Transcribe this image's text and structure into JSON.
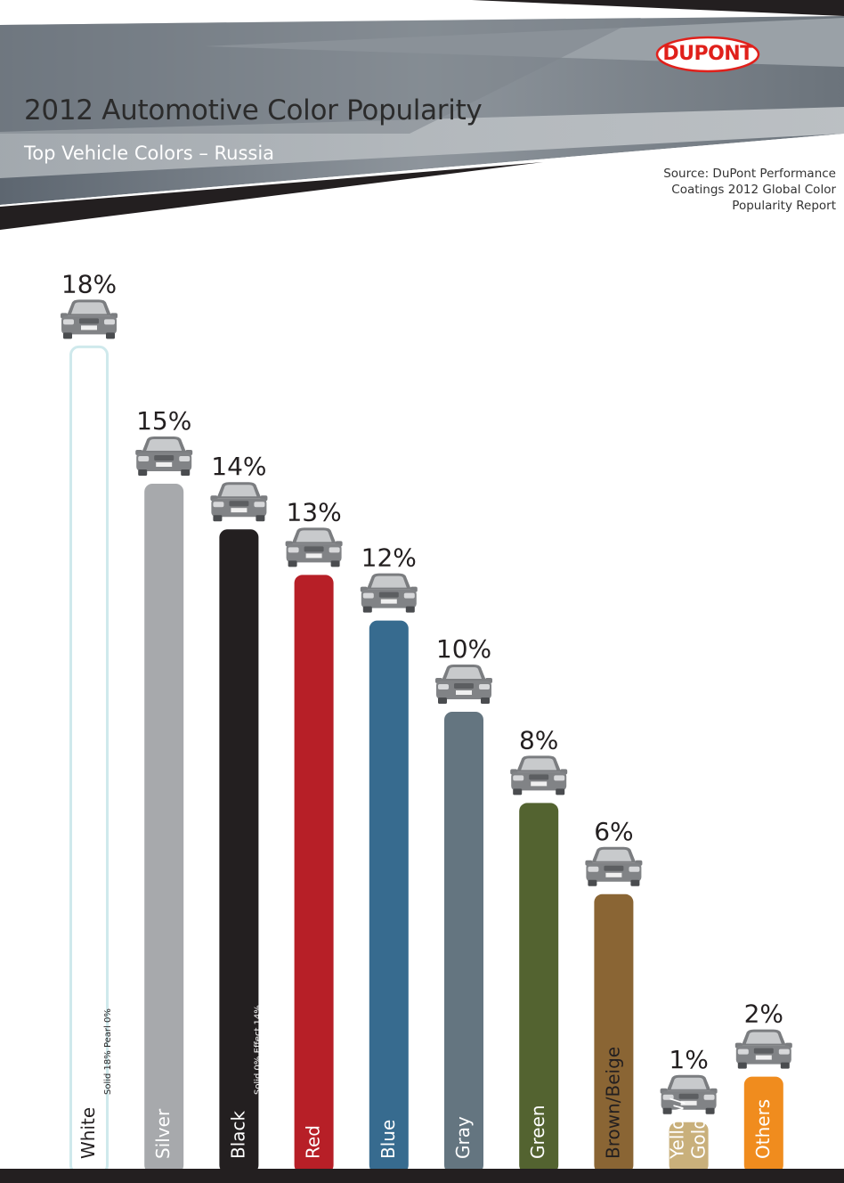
{
  "header": {
    "title": "2012 Automotive Color Popularity",
    "subtitle": "Top Vehicle Colors – Russia",
    "source": "Source: DuPont Performance Coatings 2012 Global Color Popularity Report",
    "logo_text": "DUPONT"
  },
  "chart_data": {
    "type": "bar",
    "title": "2012 Automotive Color Popularity",
    "subtitle": "Top Vehicle Colors – Russia",
    "ylim": [
      0,
      18
    ],
    "grid": false,
    "categories": [
      "White",
      "Silver",
      "Black",
      "Red",
      "Blue",
      "Gray",
      "Green",
      "Brown/Beige",
      "Yellow/ Gold",
      "Others"
    ],
    "values": [
      18,
      15,
      14,
      13,
      12,
      10,
      8,
      6,
      1,
      2
    ],
    "value_labels": [
      "18%",
      "15%",
      "14%",
      "13%",
      "12%",
      "10%",
      "8%",
      "6%",
      "1%",
      "2%"
    ],
    "colors": [
      "#ffffff",
      "#a7a9ac",
      "#231f20",
      "#b71f27",
      "#376b8f",
      "#647580",
      "#536330",
      "#8a6534",
      "#c9b07b",
      "#f08c1e"
    ],
    "white_outline_color": "#cfe9ec",
    "label_colors": [
      "#231f20",
      "#ffffff",
      "#ffffff",
      "#ffffff",
      "#ffffff",
      "#ffffff",
      "#ffffff",
      "#231f20",
      "#ffffff",
      "#ffffff"
    ],
    "breakdowns": [
      {
        "index": 0,
        "text": "Solid 18%   Pearl 0%"
      },
      {
        "index": 2,
        "text": "Solid 0%   Effect 14%"
      }
    ],
    "icon": "car-front-icon"
  }
}
